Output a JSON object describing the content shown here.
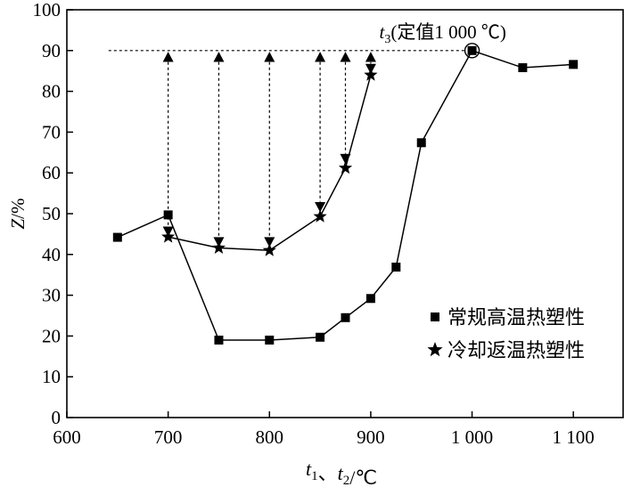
{
  "chart_data": {
    "type": "line",
    "xlabel": "t₁、t₂/℃",
    "ylabel": "Z/%",
    "xlim": [
      600,
      1150
    ],
    "ylim": [
      0,
      100
    ],
    "x_ticks": [
      600,
      700,
      800,
      900,
      1000,
      1100
    ],
    "x_tick_labels": [
      "600",
      "700",
      "800",
      "900",
      "1 000",
      "1 100"
    ],
    "y_ticks": [
      0,
      10,
      20,
      30,
      40,
      50,
      60,
      70,
      80,
      90,
      100
    ],
    "y_tick_labels": [
      "0",
      "10",
      "20",
      "30",
      "40",
      "50",
      "60",
      "70",
      "80",
      "90",
      "100"
    ],
    "legend_position": "bottom-right",
    "series": [
      {
        "name": "常规高温热塑性",
        "marker": "square",
        "x": [
          650,
          700,
          750,
          800,
          850,
          875,
          900,
          925,
          950,
          1000,
          1050,
          1100
        ],
        "y": [
          44.2,
          49.7,
          19.0,
          19.0,
          19.7,
          24.5,
          29.2,
          36.9,
          67.4,
          90.0,
          85.8,
          86.6
        ]
      },
      {
        "name": "冷却返温热塑性",
        "marker": "star",
        "x": [
          700,
          750,
          800,
          850,
          875,
          900
        ],
        "y": [
          44.3,
          41.6,
          41.0,
          49.3,
          61.2,
          84.0
        ]
      }
    ],
    "reference_line": {
      "y": 90,
      "x_start": 650,
      "x_end": 1000
    },
    "arrows": [
      {
        "x": 700,
        "y_from": 45.6
      },
      {
        "x": 750,
        "y_from": 43.0
      },
      {
        "x": 800,
        "y_from": 43.0
      },
      {
        "x": 850,
        "y_from": 51.6
      },
      {
        "x": 875,
        "y_from": 63.4
      },
      {
        "x": 900,
        "y_from": 85.5
      }
    ],
    "annotation": {
      "prefix": "t",
      "subscript": "3",
      "suffix": "(定值1 000 ℃)",
      "x": 1000,
      "y": 90
    }
  }
}
